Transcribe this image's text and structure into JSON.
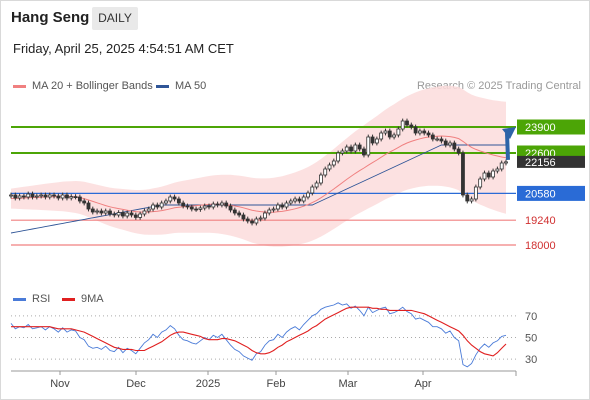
{
  "header": {
    "title": "Hang Seng",
    "period": "DAILY",
    "timestamp": "Friday, April 25, 2025 4:54:51 AM CET",
    "credit": "Research © 2025 Trading Central"
  },
  "legend": {
    "ma20": "MA 20 + Bollinger Bands",
    "ma50": "MA 50",
    "rsi": "RSI",
    "rsi_ma": "9MA"
  },
  "colors": {
    "resistance": "#4ca506",
    "pivot": "#2a6bd6",
    "support": "#f08080",
    "ma20": "#f08080",
    "ma50": "#2f5597",
    "bollinger_fill": "#fbdcdc",
    "candle": "#333333",
    "bull_candle": "#ffffff",
    "arrow": "#2d64a8",
    "rsi": "#4a7bd8",
    "rsi_ma": "#e02020",
    "last_price_tag": "#333333"
  },
  "chart_data": [
    {
      "type": "candlestick",
      "title": "Hang Seng",
      "ylim": [
        17000,
        25500
      ],
      "x_ticks": [
        "Nov",
        "Dec",
        "2025",
        "Feb",
        "Mar",
        "Apr"
      ],
      "last_price": 22156,
      "levels": [
        {
          "label": "23900",
          "value": 23900,
          "kind": "resistance"
        },
        {
          "label": "22600",
          "value": 22600,
          "kind": "resistance"
        },
        {
          "label": "20580",
          "value": 20580,
          "kind": "pivot"
        },
        {
          "label": "19240",
          "value": 19240,
          "kind": "support"
        },
        {
          "label": "18000",
          "value": 18000,
          "kind": "support"
        }
      ],
      "close": [
        20500,
        20350,
        20450,
        20400,
        20550,
        20400,
        20450,
        20500,
        20400,
        20500,
        20450,
        20350,
        20500,
        20350,
        20420,
        20400,
        20200,
        20100,
        19800,
        19650,
        19700,
        19600,
        19700,
        19550,
        19500,
        19620,
        19450,
        19600,
        19500,
        19380,
        19550,
        19700,
        19800,
        20000,
        19900,
        20100,
        20200,
        20400,
        20300,
        20100,
        19950,
        19900,
        19800,
        19780,
        19850,
        19950,
        19900,
        20050,
        20000,
        20100,
        19950,
        19750,
        19600,
        19500,
        19300,
        19200,
        19100,
        19300,
        19350,
        19600,
        19750,
        19800,
        20000,
        19900,
        20100,
        20200,
        20300,
        20200,
        20400,
        20600,
        20900,
        21100,
        21500,
        21800,
        22000,
        22200,
        22600,
        22700,
        22900,
        22700,
        23000,
        22800,
        22500,
        23400,
        23100,
        23300,
        23600,
        23700,
        23400,
        23500,
        23800,
        24200,
        24000,
        23900,
        23600,
        23700,
        23600,
        23500,
        23300,
        23300,
        23200,
        23000,
        23100,
        22800,
        22600,
        20500,
        20200,
        20300,
        20900,
        21300,
        21600,
        21400,
        21700,
        21800,
        22100,
        22156
      ],
      "ma20": [
        20320,
        20330,
        20340,
        20350,
        20360,
        20370,
        20380,
        20390,
        20400,
        20405,
        20410,
        20420,
        20430,
        20420,
        20410,
        20400,
        20370,
        20320,
        20250,
        20180,
        20110,
        20040,
        19970,
        19910,
        19860,
        19820,
        19780,
        19740,
        19700,
        19670,
        19650,
        19640,
        19650,
        19670,
        19690,
        19720,
        19760,
        19810,
        19860,
        19890,
        19910,
        19930,
        19950,
        19970,
        19990,
        20010,
        20030,
        20040,
        20040,
        20030,
        20010,
        19990,
        19950,
        19910,
        19860,
        19800,
        19740,
        19700,
        19670,
        19650,
        19640,
        19640,
        19660,
        19680,
        19720,
        19760,
        19810,
        19870,
        19940,
        20020,
        20120,
        20230,
        20360,
        20500,
        20650,
        20800,
        20960,
        21120,
        21280,
        21430,
        21580,
        21720,
        21850,
        21990,
        22120,
        22250,
        22390,
        22530,
        22650,
        22760,
        22880,
        23000,
        23100,
        23180,
        23250,
        23310,
        23360,
        23400,
        23420,
        23440,
        23450,
        23440,
        23420,
        23380,
        23320,
        23180,
        23020,
        22880,
        22780,
        22700,
        22630,
        22560,
        22500,
        22450,
        22400,
        22360
      ],
      "band_width": [
        500,
        520,
        540,
        560,
        580,
        600,
        620,
        640,
        660,
        680,
        700,
        720,
        740,
        760,
        780,
        800,
        820,
        840,
        860,
        880,
        900,
        920,
        940,
        960,
        980,
        1000,
        1020,
        1040,
        1060,
        1080,
        1100,
        1120,
        1140,
        1160,
        1180,
        1200,
        1220,
        1240,
        1260,
        1280,
        1300,
        1320,
        1340,
        1360,
        1380,
        1400,
        1420,
        1440,
        1460,
        1480,
        1500,
        1520,
        1540,
        1560,
        1580,
        1600,
        1620,
        1640,
        1660,
        1680,
        1700,
        1720,
        1740,
        1760,
        1780,
        1800,
        1820,
        1840,
        1860,
        1880,
        1900,
        1920,
        1940,
        1960,
        1980,
        2000,
        2020,
        2040,
        2060,
        2080,
        2100,
        2120,
        2140,
        2160,
        2180,
        2200,
        2220,
        2240,
        2260,
        2280,
        2300,
        2320,
        2340,
        2360,
        2380,
        2400,
        2420,
        2440,
        2460,
        2480,
        2500,
        2520,
        2540,
        2560,
        2580,
        2600,
        2620,
        2640,
        2660,
        2680,
        2700,
        2720,
        2740,
        2760,
        2780,
        2800
      ],
      "ma50": [
        18600,
        18640,
        18680,
        18720,
        18760,
        18800,
        18840,
        18880,
        18920,
        18960,
        19000,
        19040,
        19080,
        19120,
        19160,
        19200,
        19240,
        19280,
        19320,
        19360,
        19400,
        19440,
        19480,
        19520,
        19560,
        19600,
        19640,
        19680,
        19720,
        19760,
        19800,
        19840,
        19880,
        19920,
        19960,
        20000,
        20000,
        20000,
        20000,
        20000,
        20000,
        20000,
        20000,
        20000,
        20000,
        20000,
        20000,
        20000,
        20000,
        20000,
        20000,
        20000,
        20000,
        20000,
        20000,
        20000,
        20000,
        20000,
        20000,
        20000,
        20000,
        20000,
        20000,
        20000,
        20000,
        20000,
        20000,
        20000,
        20000,
        20000,
        20000,
        20100,
        20200,
        20300,
        20400,
        20500,
        20600,
        20700,
        20800,
        20900,
        21000,
        21100,
        21200,
        21300,
        21400,
        21500,
        21600,
        21700,
        21800,
        21900,
        22000,
        22100,
        22200,
        22300,
        22400,
        22500,
        22600,
        22700,
        22800,
        22900,
        23000,
        23000,
        23000,
        23000,
        23000,
        23000,
        23000,
        23000,
        23000,
        23000,
        23000,
        23000,
        23000,
        23000,
        23000,
        23000
      ]
    },
    {
      "type": "line",
      "title": "RSI",
      "ylim": [
        20,
        80
      ],
      "y_ticks": [
        70,
        50,
        30
      ],
      "series": [
        {
          "name": "RSI",
          "values": [
            63,
            58,
            60,
            59,
            62,
            58,
            59,
            60,
            57,
            60,
            58,
            55,
            59,
            55,
            57,
            56,
            50,
            48,
            42,
            40,
            41,
            39,
            42,
            38,
            37,
            41,
            36,
            40,
            38,
            35,
            40,
            45,
            48,
            53,
            50,
            55,
            57,
            61,
            58,
            52,
            48,
            47,
            45,
            44,
            47,
            50,
            48,
            52,
            50,
            53,
            48,
            43,
            39,
            37,
            33,
            31,
            29,
            35,
            37,
            43,
            47,
            48,
            53,
            50,
            55,
            58,
            60,
            57,
            62,
            66,
            70,
            72,
            76,
            78,
            79,
            80,
            82,
            80,
            81,
            77,
            79,
            75,
            70,
            78,
            73,
            75,
            77,
            78,
            72,
            73,
            75,
            78,
            74,
            72,
            67,
            68,
            66,
            64,
            60,
            60,
            58,
            54,
            56,
            50,
            47,
            25,
            23,
            26,
            34,
            40,
            44,
            41,
            45,
            47,
            51,
            52
          ]
        },
        {
          "name": "9MA",
          "values": [
            60,
            60,
            60,
            60,
            60,
            60,
            60,
            60,
            60,
            60,
            59,
            58,
            58,
            58,
            58,
            57,
            56,
            55,
            53,
            51,
            49,
            47,
            45,
            43,
            41,
            40,
            39,
            39,
            39,
            38,
            38,
            38,
            40,
            42,
            44,
            46,
            49,
            52,
            54,
            55,
            55,
            54,
            53,
            52,
            51,
            49,
            48,
            48,
            48,
            49,
            49,
            48,
            47,
            45,
            43,
            41,
            38,
            36,
            35,
            35,
            36,
            38,
            41,
            43,
            46,
            48,
            50,
            52,
            54,
            56,
            59,
            61,
            64,
            67,
            69,
            71,
            73,
            75,
            77,
            78,
            78,
            78,
            78,
            78,
            77,
            77,
            76,
            76,
            75,
            75,
            75,
            75,
            75,
            75,
            74,
            73,
            72,
            70,
            68,
            66,
            64,
            62,
            60,
            58,
            56,
            52,
            47,
            43,
            40,
            37,
            35,
            34,
            33,
            36,
            40,
            44
          ]
        }
      ]
    }
  ]
}
